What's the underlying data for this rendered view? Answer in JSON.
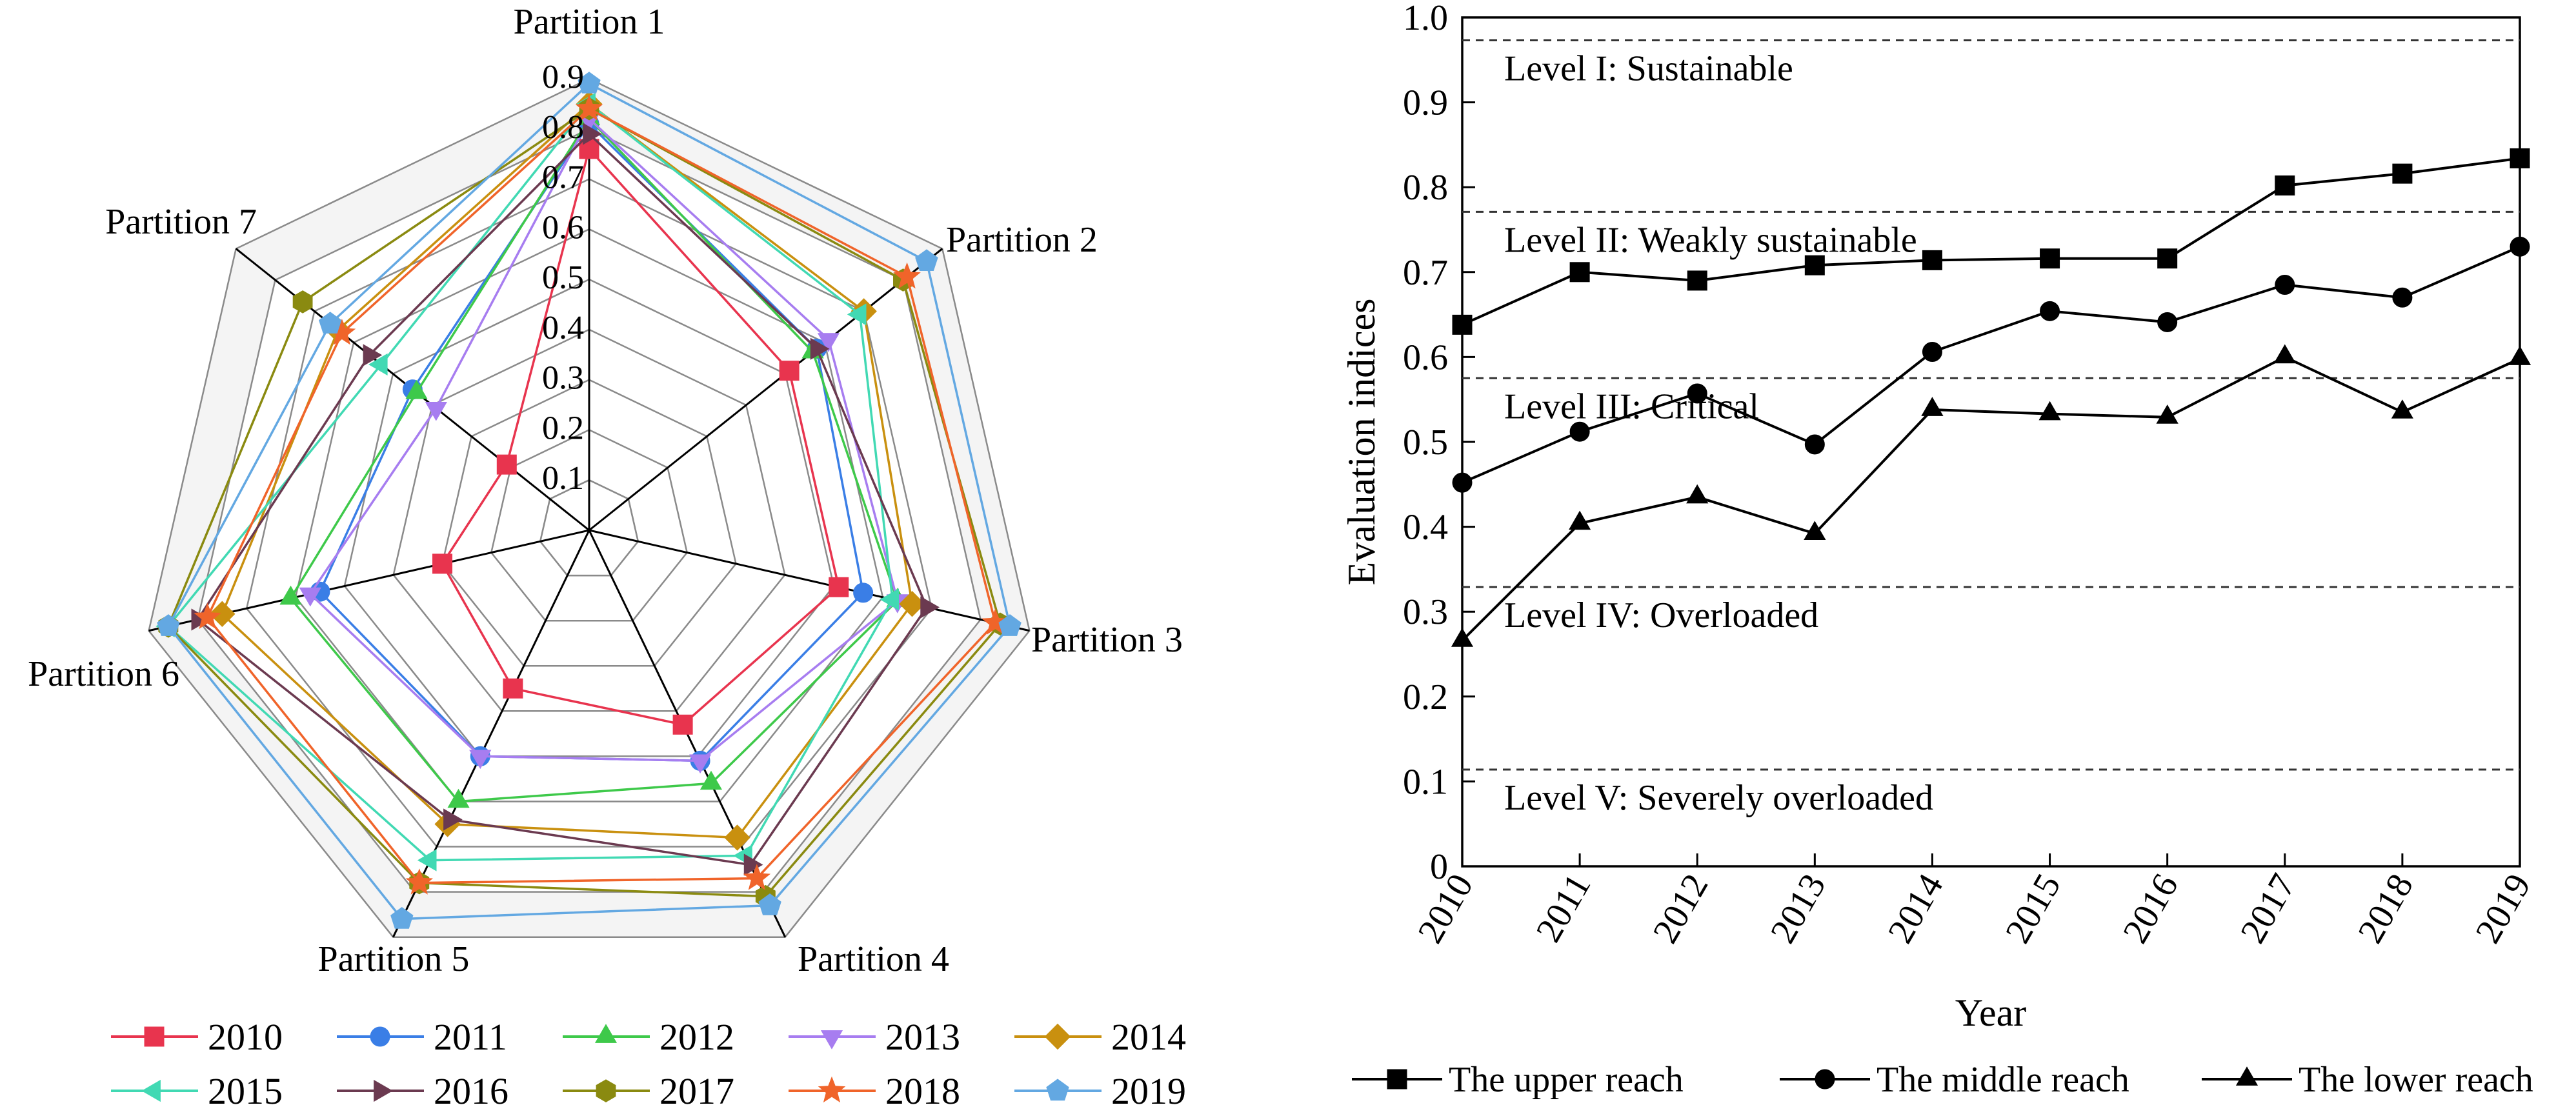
{
  "chart_data": [
    {
      "type": "radar",
      "axes": [
        "Partition 1",
        "Partition 2",
        "Partition 3",
        "Partition 4",
        "Partition 5",
        "Partition 6",
        "Partition 7"
      ],
      "ticks": [
        "0.1",
        "0.2",
        "0.3",
        "0.4",
        "0.5",
        "0.6",
        "0.7",
        "0.8",
        "0.9"
      ],
      "range": [
        0,
        0.9
      ],
      "legend_position": "bottom",
      "series": [
        {
          "name": "2010",
          "color": "#e8344e",
          "marker": "square",
          "values": [
            0.76,
            0.51,
            0.51,
            0.43,
            0.35,
            0.3,
            0.21
          ]
        },
        {
          "name": "2011",
          "color": "#3a7ee6",
          "marker": "circle",
          "values": [
            0.81,
            0.58,
            0.56,
            0.51,
            0.5,
            0.55,
            0.45
          ]
        },
        {
          "name": "2012",
          "color": "#3ec94a",
          "marker": "triangle",
          "values": [
            0.82,
            0.57,
            0.63,
            0.56,
            0.6,
            0.61,
            0.44
          ]
        },
        {
          "name": "2013",
          "color": "#a77df0",
          "marker": "triangle-down",
          "values": [
            0.82,
            0.61,
            0.63,
            0.51,
            0.5,
            0.57,
            0.39
          ]
        },
        {
          "name": "2014",
          "color": "#c9900f",
          "marker": "diamond",
          "values": [
            0.85,
            0.7,
            0.66,
            0.68,
            0.65,
            0.75,
            0.64
          ]
        },
        {
          "name": "2015",
          "color": "#41d9b3",
          "marker": "triangle-left",
          "values": [
            0.85,
            0.69,
            0.62,
            0.72,
            0.73,
            0.86,
            0.53
          ]
        },
        {
          "name": "2016",
          "color": "#6b3a50",
          "marker": "triangle-right",
          "values": [
            0.79,
            0.58,
            0.69,
            0.74,
            0.64,
            0.8,
            0.56
          ]
        },
        {
          "name": "2017",
          "color": "#8a8a10",
          "marker": "hexagon",
          "values": [
            0.84,
            0.8,
            0.84,
            0.81,
            0.78,
            0.86,
            0.73
          ]
        },
        {
          "name": "2018",
          "color": "#f0642a",
          "marker": "star",
          "values": [
            0.84,
            0.81,
            0.83,
            0.77,
            0.78,
            0.78,
            0.63
          ]
        },
        {
          "name": "2019",
          "color": "#63a8e2",
          "marker": "pentagon",
          "values": [
            0.89,
            0.86,
            0.86,
            0.83,
            0.86,
            0.86,
            0.66
          ]
        }
      ]
    },
    {
      "type": "line",
      "xlabel": "Year",
      "ylabel": "Evaluation indices",
      "x": [
        "2010",
        "2011",
        "2012",
        "2013",
        "2014",
        "2015",
        "2016",
        "2017",
        "2018",
        "2019"
      ],
      "ylim": [
        0,
        1.0
      ],
      "yticks": [
        "0",
        "0.1",
        "0.2",
        "0.3",
        "0.4",
        "0.5",
        "0.6",
        "0.7",
        "0.8",
        "0.9",
        "1.0"
      ],
      "grid": false,
      "legend_position": "bottom",
      "series": [
        {
          "name": "The upper reach",
          "marker": "square",
          "values": [
            0.638,
            0.7,
            0.69,
            0.708,
            0.714,
            0.716,
            0.716,
            0.802,
            0.816,
            0.834
          ]
        },
        {
          "name": "The middle  reach",
          "marker": "circle",
          "values": [
            0.452,
            0.512,
            0.557,
            0.497,
            0.606,
            0.654,
            0.641,
            0.685,
            0.67,
            0.73
          ]
        },
        {
          "name": "The lower reach",
          "marker": "triangle",
          "values": [
            0.266,
            0.404,
            0.435,
            0.392,
            0.538,
            0.533,
            0.529,
            0.6,
            0.535,
            0.598
          ]
        }
      ],
      "thresholds": [
        {
          "value": 0.973,
          "label": "Level I: Sustainable"
        },
        {
          "value": 0.771,
          "label": "Level II: Weakly sustainable"
        },
        {
          "value": 0.575,
          "label": "Level III: Critical"
        },
        {
          "value": 0.329,
          "label": "Level IV: Overloaded"
        },
        {
          "value": 0.114,
          "label": "Level V: Severely overloaded"
        }
      ]
    }
  ]
}
